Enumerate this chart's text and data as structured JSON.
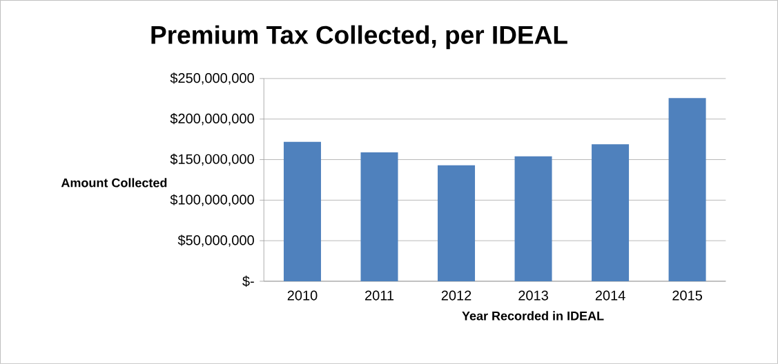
{
  "chart_data": {
    "type": "bar",
    "title": "Premium Tax Collected, per IDEAL",
    "xlabel": "Year Recorded in IDEAL",
    "ylabel": "Amount Collected",
    "categories": [
      "2010",
      "2011",
      "2012",
      "2013",
      "2014",
      "2015"
    ],
    "values": [
      172000000,
      159000000,
      143000000,
      154000000,
      169000000,
      226000000
    ],
    "color": "#4f81bd",
    "ylim": [
      0,
      250000000
    ],
    "yticks": [
      {
        "value": 0,
        "label": "$-"
      },
      {
        "value": 50000000,
        "label": "$50,000,000"
      },
      {
        "value": 100000000,
        "label": "$100,000,000"
      },
      {
        "value": 150000000,
        "label": "$150,000,000"
      },
      {
        "value": 200000000,
        "label": "$200,000,000"
      },
      {
        "value": 250000000,
        "label": "$250,000,000"
      }
    ],
    "grid": "y"
  }
}
